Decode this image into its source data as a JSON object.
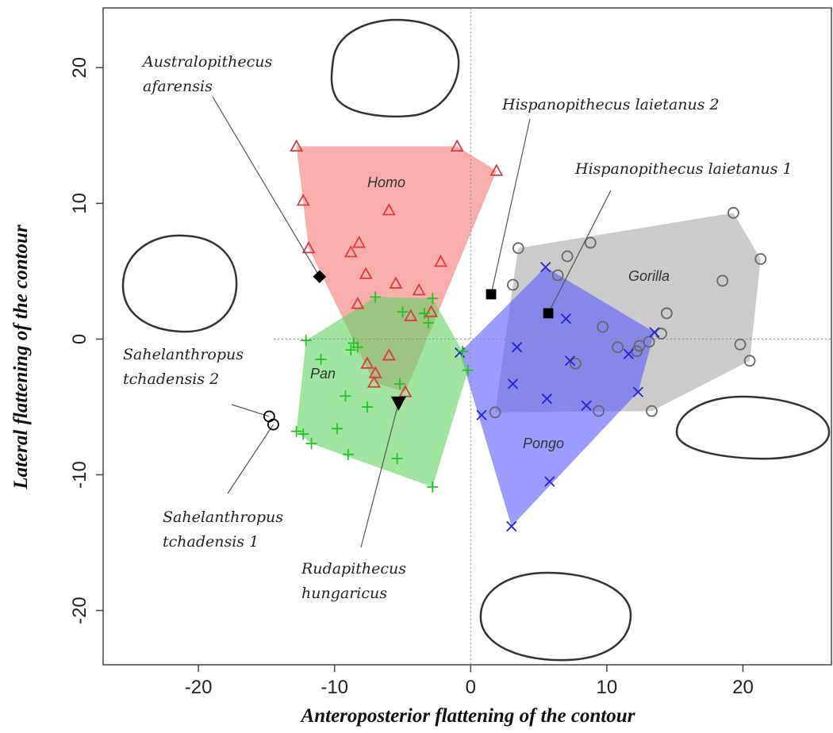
{
  "chart_data": {
    "type": "scatter",
    "x_label": "Anteroposterior flattening of the contour",
    "y_label": "Lateral flattening of the contour",
    "xlim": [
      -27,
      26.5
    ],
    "ylim": [
      -24,
      24.4
    ],
    "xticks": [
      -20,
      -10,
      0,
      10,
      20
    ],
    "yticks": [
      -20,
      -10,
      0,
      10,
      20
    ],
    "zero_lines": true,
    "convex_hulls": true,
    "series": [
      {
        "name": "Gorilla",
        "marker": "circle",
        "color": "#666666",
        "fill": "#a8a8a8",
        "x": [
          3.5,
          7.1,
          8.8,
          6.4,
          3.1,
          19.3,
          21.3,
          18.5,
          14.4,
          9.7,
          14.0,
          7.7,
          12.4,
          13.1,
          12.2,
          9.4,
          1.8,
          19.8,
          20.5,
          13.3,
          10.8
        ],
        "y": [
          6.7,
          6.1,
          7.1,
          4.7,
          4.0,
          9.3,
          5.9,
          4.3,
          1.9,
          0.9,
          0.4,
          -1.8,
          -0.5,
          -0.2,
          -0.9,
          -5.3,
          -5.4,
          -0.4,
          -1.6,
          -5.3,
          -0.6
        ]
      },
      {
        "name": "Pongo",
        "marker": "x",
        "color": "#2222dd",
        "fill": "#5a5aff",
        "x": [
          5.5,
          7.0,
          3.4,
          -0.8,
          7.3,
          11.6,
          3.1,
          5.6,
          12.3,
          8.5,
          0.8,
          5.8,
          3.0,
          13.5
        ],
        "y": [
          5.3,
          1.5,
          -0.6,
          -1.0,
          -1.6,
          -1.1,
          -3.3,
          -4.4,
          -3.9,
          -4.9,
          -5.6,
          -10.5,
          -13.8,
          0.5
        ]
      },
      {
        "name": "Homo",
        "marker": "triangle",
        "color": "#e03a3a",
        "fill": "#f57878",
        "x": [
          -12.8,
          -1.0,
          1.9,
          -12.3,
          -6.0,
          -11.9,
          -8.2,
          -8.8,
          -7.7,
          -2.2,
          -5.5,
          -3.8,
          -8.3,
          -2.9,
          -4.4,
          -6.0,
          -7.6,
          -7.0,
          -7.1,
          -4.8
        ],
        "y": [
          14.2,
          14.2,
          12.4,
          10.2,
          9.5,
          6.7,
          7.1,
          6.4,
          4.8,
          5.7,
          4.1,
          3.6,
          2.6,
          2.0,
          1.7,
          -1.2,
          -1.8,
          -2.5,
          -3.2,
          -3.9
        ]
      },
      {
        "name": "Pan",
        "marker": "plus",
        "color": "#22c422",
        "fill": "#5fd35f",
        "x": [
          -12.1,
          -7.0,
          -11.0,
          -5.0,
          -2.8,
          -8.6,
          -8.8,
          -8.3,
          -3.1,
          -3.4,
          -0.6,
          -0.2,
          -9.2,
          -7.6,
          -9.8,
          -5.2,
          -12.8,
          -12.3,
          -11.7,
          -9.0,
          -5.4,
          -2.8
        ],
        "y": [
          -0.1,
          3.1,
          -1.5,
          2.0,
          3.0,
          -0.3,
          -0.8,
          -0.6,
          1.2,
          1.9,
          -0.9,
          -2.3,
          -4.2,
          -5.0,
          -6.6,
          -3.3,
          -6.8,
          -7.0,
          -7.7,
          -8.5,
          -8.8,
          -10.9
        ]
      }
    ],
    "specimens": [
      {
        "label": [
          "Australopithecus",
          "afarensis"
        ],
        "marker": "diamond",
        "x": -11.1,
        "y": 4.6
      },
      {
        "label": [
          "Hispanopithecus laietanus 2"
        ],
        "marker": "square",
        "x": 1.5,
        "y": 3.3
      },
      {
        "label": [
          "Hispanopithecus laietanus 1"
        ],
        "marker": "square",
        "x": 5.7,
        "y": 1.9
      },
      {
        "label": [
          "Sahelanthropus",
          "tchadensis 2"
        ],
        "marker": "circle",
        "x": -14.8,
        "y": -5.7
      },
      {
        "label": [
          "Sahelanthropus",
          "tchadensis 1"
        ],
        "marker": "circle",
        "x": -14.5,
        "y": -6.3
      },
      {
        "label": [
          "Rudapithecus",
          "hungaricus"
        ],
        "marker": "triangle-down",
        "x": -5.3,
        "y": -4.7
      }
    ]
  }
}
